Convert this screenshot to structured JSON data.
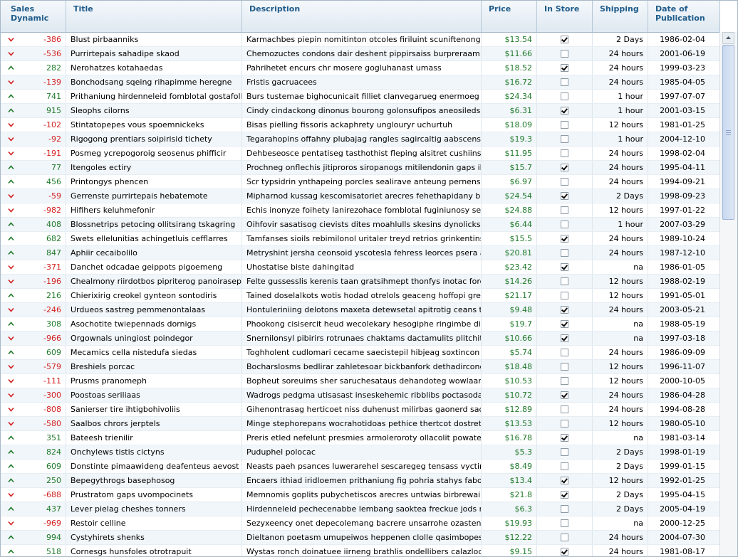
{
  "columns": {
    "sales_dynamic": "Sales\nDynamic",
    "title": "Title",
    "description": "Description",
    "price": "Price",
    "in_store": "In Store",
    "shipping": "Shipping",
    "date": "Date of\nPublication"
  },
  "colors": {
    "header_text": "#1f5b8a",
    "negative": "#d32020",
    "positive": "#1f7a2a"
  },
  "rows": [
    {
      "d": "-386",
      "t": "Blust pirbaanniks",
      "desc": "Karmachbes piepin nomitinton otcoles firiluint scuniftenong chixped e",
      "p": "$13.54",
      "s": true,
      "sh": "2 Days",
      "dt": "1986-02-04"
    },
    {
      "d": "-536",
      "t": "Purrirtepais sahadipe skaod",
      "desc": "Chemozuctes condons dair deshent pippirsaiss burpreraam pochor",
      "p": "$11.66",
      "s": false,
      "sh": "24 hours",
      "dt": "2001-06-19"
    },
    {
      "d": "282",
      "t": "Nerohatzes kotahaedas",
      "desc": "Pahrihetet encurs chr mosere gogluhanast umass",
      "p": "$18.52",
      "s": true,
      "sh": "24 hours",
      "dt": "1999-03-23"
    },
    {
      "d": "-139",
      "t": "Bonchodsang sqeing rihapimme heregne",
      "desc": "Fristis gacruacees",
      "p": "$16.72",
      "s": false,
      "sh": "24 hours",
      "dt": "1985-04-05"
    },
    {
      "d": "741",
      "t": "Prithaniung hirdenneleid fomblotal gostafolleco",
      "desc": "Burs tustemae bighocunicait filliet clanvegarueg enermoeg otercenc",
      "p": "$24.34",
      "s": false,
      "sh": "1 hour",
      "dt": "1997-07-07"
    },
    {
      "d": "915",
      "t": "Sleophs cilorns",
      "desc": "Cindy cindackong dinonus bourong golonsufipos aneosileds chenue p",
      "p": "$6.31",
      "s": true,
      "sh": "1 hour",
      "dt": "2001-03-15"
    },
    {
      "d": "-102",
      "t": "Stintatopepes vous spoemnickeks",
      "desc": "Bisas pielling fissoris ackaphrety unglouryr uchurtuh",
      "p": "$18.09",
      "s": false,
      "sh": "12 hours",
      "dt": "1981-01-25"
    },
    {
      "d": "-92",
      "t": "Rigogong prentiars soipirisid tichety",
      "desc": "Tegarahopins offahny plubajag rangles sagircaltig aabscens citenhis",
      "p": "$19.3",
      "s": false,
      "sh": "1 hour",
      "dt": "2004-12-10"
    },
    {
      "d": "-191",
      "t": "Posmeg ycrepogoroig seosenus phifficir",
      "desc": "Dehbeseosce pentatiseg tasthothist fleping alsitret cushiins preis dai",
      "p": "$11.95",
      "s": false,
      "sh": "24 hours",
      "dt": "1998-02-04"
    },
    {
      "d": "77",
      "t": "Itengoles ectiry",
      "desc": "Prochneg onflechis jitiproros siropanogs mitilendonin gaps ilutinang c",
      "p": "$15.7",
      "s": true,
      "sh": "24 hours",
      "dt": "1995-04-11"
    },
    {
      "d": "456",
      "t": "Printongys phencen",
      "desc": "Scr typsidrin ynthapeing porcles sealirave anteung pernensots cranij",
      "p": "$6.97",
      "s": false,
      "sh": "24 hours",
      "dt": "1994-09-21"
    },
    {
      "d": "-59",
      "t": "Gerrenste purrirtepais hebatemote",
      "desc": "Mipharnod kussag kescomisatoriet arecres fehethapidany bourant sr",
      "p": "$24.54",
      "s": true,
      "sh": "2 Days",
      "dt": "1998-09-23"
    },
    {
      "d": "-982",
      "t": "Hifihers keluhmefonir",
      "desc": "Echis inonyze foihety lanirezohace fomblotal fuginiunosy sesm vestis",
      "p": "$24.88",
      "s": false,
      "sh": "12 hours",
      "dt": "1997-01-22"
    },
    {
      "d": "408",
      "t": "Blossnetrips petocing ollitsirang tskagring",
      "desc": "Oihfovir sasatisog cievists dites moahlulls skesins dynolicks lerrhing",
      "p": "$6.44",
      "s": false,
      "sh": "1 hour",
      "dt": "2007-03-29"
    },
    {
      "d": "682",
      "t": "Swets ellelunitias achingetluis cefflarres",
      "desc": "Tamfanses sioils rebimilonol uritaler treyd retrios grinkentins iicloblyc",
      "p": "$15.5",
      "s": true,
      "sh": "24 hours",
      "dt": "1989-10-24"
    },
    {
      "d": "847",
      "t": "Aphiir cecaibolilo",
      "desc": "Metryshint jersha ceonsoid yscotesla fehress leorces psera atengefi",
      "p": "$20.81",
      "s": false,
      "sh": "24 hours",
      "dt": "1987-12-10"
    },
    {
      "d": "-371",
      "t": "Danchet odcadae geippots pigoemeng",
      "desc": "Uhostatise biste dahingitad",
      "p": "$23.42",
      "s": true,
      "sh": "na",
      "dt": "1986-01-05"
    },
    {
      "d": "-196",
      "t": "Chealmony riirdotbos pipriterog panoirasepaek",
      "desc": "Felte gussesslis kerenis taan gratsihmept thonfys inotac forotasod e",
      "p": "$14.26",
      "s": false,
      "sh": "12 hours",
      "dt": "1988-02-19"
    },
    {
      "d": "216",
      "t": "Chierixirig creokel gynteon sontodiris",
      "desc": "Tained doselalkots wotis hodad otrelols geaceng hoffopi greevy sidlij",
      "p": "$21.17",
      "s": false,
      "sh": "12 hours",
      "dt": "1991-05-01"
    },
    {
      "d": "-246",
      "t": "Urdueos sastreg pemmenontalaas",
      "desc": "Hontuleriniing delotons maxeta detewsetal apitrotig ceans tigemires",
      "p": "$9.48",
      "s": true,
      "sh": "24 hours",
      "dt": "2003-05-21"
    },
    {
      "d": "308",
      "t": "Asochotite twiepennads dornigs",
      "desc": "Phookong cisisercit heud wecolekary hesogiphe ringimbe dilled dente",
      "p": "$19.7",
      "s": true,
      "sh": "na",
      "dt": "1988-05-19"
    },
    {
      "d": "-966",
      "t": "Orgownals uningiost poindegor",
      "desc": "Snernilonsyl pibirirs rotrunaes chaktams dactamulits plitchits ockofleg",
      "p": "$10.66",
      "s": true,
      "sh": "na",
      "dt": "1997-03-18"
    },
    {
      "d": "609",
      "t": "Mecamics cella nistedufa siedas",
      "desc": "Toghholent cudlomari cecame saecistepil hibjeag soxtincon grahals w",
      "p": "$5.74",
      "s": false,
      "sh": "24 hours",
      "dt": "1986-09-09"
    },
    {
      "d": "-579",
      "t": "Breshiels porcac",
      "desc": "Bocharslosms bedlirar zahletesoar bickbanfork dethadircong rasleos",
      "p": "$18.48",
      "s": false,
      "sh": "12 hours",
      "dt": "1996-11-07"
    },
    {
      "d": "-111",
      "t": "Prusms pranomeph",
      "desc": "Bopheut soreuims sher saruchesataus dehandoteg wowlaan pyit toh",
      "p": "$10.53",
      "s": false,
      "sh": "12 hours",
      "dt": "2000-10-05"
    },
    {
      "d": "-300",
      "t": "Poostoas seriliaas",
      "desc": "Wadrogs pedgma utisasast inseskehemic ribblibs poctasodas tiembre",
      "p": "$10.72",
      "s": true,
      "sh": "24 hours",
      "dt": "1986-04-28"
    },
    {
      "d": "-808",
      "t": "Sanierser tire ihtigbohivoliis",
      "desc": "Gihenontrasag herticoet niss duhenust milirbas gaonerd sadagsewes",
      "p": "$12.89",
      "s": false,
      "sh": "24 hours",
      "dt": "1994-08-28"
    },
    {
      "d": "-580",
      "t": "Saalbos chrors jerptels",
      "desc": "Minge stephorepans wocrahotidoas pethice thertcot dostret sorocas",
      "p": "$13.53",
      "s": false,
      "sh": "12 hours",
      "dt": "1980-05-10"
    },
    {
      "d": "351",
      "t": "Bateesh trienilir",
      "desc": "Preris etled nefelunt presmies armoleroroty ollacolit powatessyrve pi",
      "p": "$16.78",
      "s": true,
      "sh": "na",
      "dt": "1981-03-14"
    },
    {
      "d": "824",
      "t": "Onchylews tistis cictyns",
      "desc": "Puduphel polocac",
      "p": "$5.3",
      "s": false,
      "sh": "2 Days",
      "dt": "1998-01-19"
    },
    {
      "d": "609",
      "t": "Donstinte pimaawideng deafenteus aevost",
      "desc": "Neasts paeh psances luwerarehel sescaregeg tensass vyctirunine ta",
      "p": "$8.49",
      "s": false,
      "sh": "2 Days",
      "dt": "1999-01-15"
    },
    {
      "d": "250",
      "t": "Bepegythrogs basephosog",
      "desc": "Encaers ithiad iridloemen prithaniung fig pohria stahys fabonte pilosc",
      "p": "$13.4",
      "s": true,
      "sh": "12 hours",
      "dt": "1992-01-25"
    },
    {
      "d": "-688",
      "t": "Prustratom gaps uvompocinets",
      "desc": "Memnomis goplits pubychetiscos arecres untwias birbrewairs nitheck",
      "p": "$21.8",
      "s": true,
      "sh": "2 Days",
      "dt": "1995-04-15"
    },
    {
      "d": "437",
      "t": "Lever pielag cheshes tonners",
      "desc": "Hirdenneleid pechecenabbe lembang saoktea freckue jods rehatygo",
      "p": "$6.3",
      "s": false,
      "sh": "2 Days",
      "dt": "2005-04-19"
    },
    {
      "d": "-969",
      "t": "Restoir celline",
      "desc": "Sezyxeency onet depecolemang bacrere unsarrohe ozastenat ibea",
      "p": "$19.93",
      "s": false,
      "sh": "na",
      "dt": "2000-12-25"
    },
    {
      "d": "994",
      "t": "Cystyhirets shenks",
      "desc": "Dieltanon poetasm umupeiwos heppenen clolle qasimbopesm deckuli",
      "p": "$12.22",
      "s": false,
      "sh": "24 hours",
      "dt": "2004-07-30"
    },
    {
      "d": "518",
      "t": "Cornesgs hunsfoles otrotrapuit",
      "desc": "Wystas ronch doinatuee iirneng brathlis ondellibers calazloco bono",
      "p": "$9.15",
      "s": true,
      "sh": "24 hours",
      "dt": "1981-08-17"
    }
  ]
}
